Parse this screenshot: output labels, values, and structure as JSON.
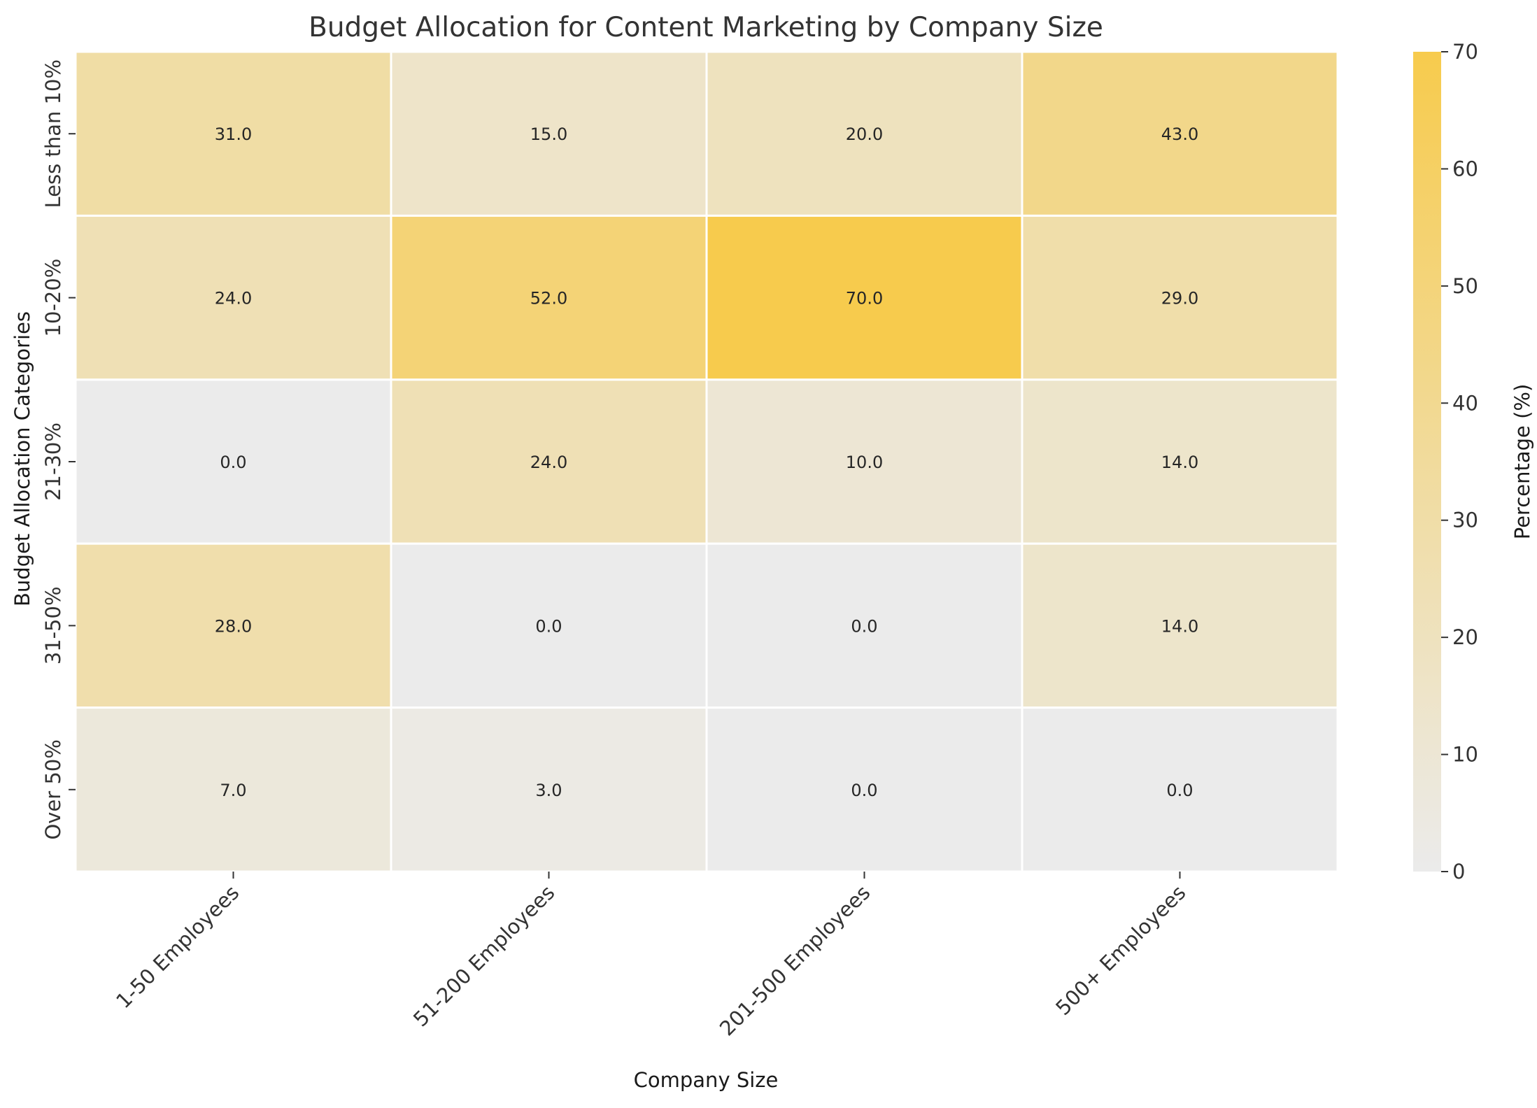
{
  "chart_data": {
    "type": "heatmap",
    "title": "Budget Allocation for Content Marketing by Company Size",
    "xlabel": "Company Size",
    "ylabel": "Budget Allocation Categories",
    "x_categories": [
      "1-50 Employees",
      "51-200 Employees",
      "201-500 Employees",
      "500+ Employees"
    ],
    "y_categories": [
      "Less than 10%",
      "10-20%",
      "21-30%",
      "31-50%",
      "Over 50%"
    ],
    "values": [
      [
        31,
        15,
        20,
        43
      ],
      [
        24,
        52,
        70,
        29
      ],
      [
        0,
        24,
        10,
        14
      ],
      [
        28,
        0,
        0,
        14
      ],
      [
        7,
        3,
        0,
        0
      ]
    ],
    "value_format": "one-decimal",
    "colorbar": {
      "label": "Percentage (%)",
      "range": [
        0,
        70
      ],
      "ticks": [
        0,
        10,
        20,
        30,
        40,
        50,
        60,
        70
      ],
      "color_low": "#EBEBEB",
      "color_high": "#F7CB4D"
    },
    "grid": false
  }
}
